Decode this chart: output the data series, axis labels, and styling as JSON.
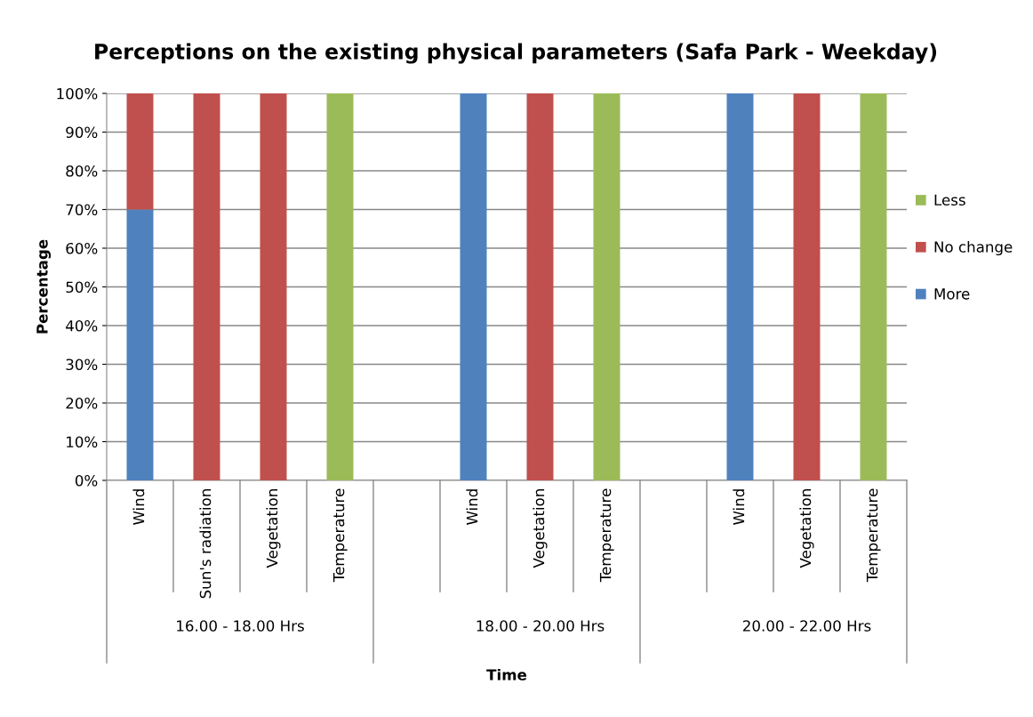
{
  "chart_data": {
    "type": "bar",
    "stacked": true,
    "title": "Perceptions on the existing physical parameters (Safa Park - Weekday)",
    "xlabel": "Time",
    "ylabel": "Percentage",
    "categories": [
      "Wind",
      "Sun's radiation",
      "Vegetation",
      "Temperature",
      null,
      "Wind",
      "Vegetation",
      "Temperature",
      null,
      "Wind",
      "Vegetation",
      "Temperature"
    ],
    "annotations": [
      "16.00 - 18.00 Hrs",
      "18.00 - 20.00 Hrs",
      "20.00 - 22.00 Hrs"
    ],
    "series": [
      {
        "name": "More",
        "color": "#4f81bd",
        "values": [
          70,
          0,
          0,
          0,
          null,
          100,
          0,
          0,
          null,
          100,
          0,
          0
        ]
      },
      {
        "name": "No change",
        "color": "#c0504d",
        "values": [
          30,
          100,
          100,
          0,
          null,
          0,
          100,
          0,
          null,
          0,
          100,
          0
        ]
      },
      {
        "name": "Less",
        "color": "#9bbb59",
        "values": [
          0,
          0,
          0,
          100,
          null,
          0,
          0,
          100,
          null,
          0,
          0,
          100
        ]
      }
    ],
    "ylim": [
      0,
      100
    ],
    "yticks": [
      {
        "value": 0,
        "label": "0%"
      },
      {
        "value": 10,
        "label": "10%"
      },
      {
        "value": 20,
        "label": "20%"
      },
      {
        "value": 30,
        "label": "30%"
      },
      {
        "value": 40,
        "label": "40%"
      },
      {
        "value": 50,
        "label": "50%"
      },
      {
        "value": 60,
        "label": "60%"
      },
      {
        "value": 70,
        "label": "70%"
      },
      {
        "value": 80,
        "label": "80%"
      },
      {
        "value": 90,
        "label": "90%"
      },
      {
        "value": 100,
        "label": "100%"
      }
    ],
    "grid": "y",
    "legend": "right"
  }
}
